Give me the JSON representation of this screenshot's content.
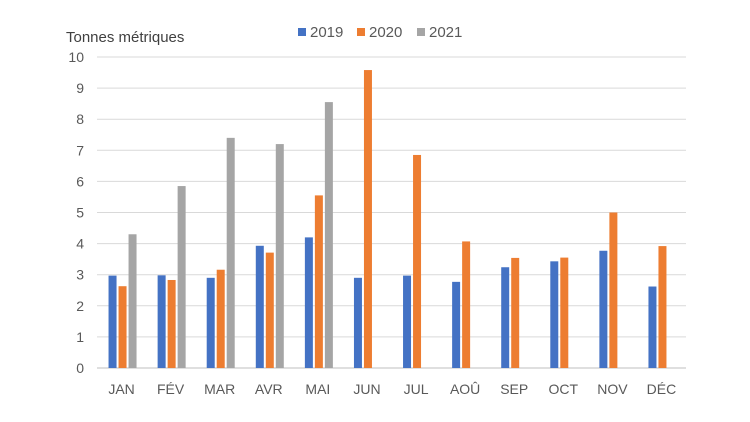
{
  "chart_data": {
    "type": "bar",
    "title": "",
    "ylabel": "Tonnes métriques",
    "xlabel": "",
    "ylim": [
      0,
      10
    ],
    "yticks": [
      0,
      1,
      2,
      3,
      4,
      5,
      6,
      7,
      8,
      9,
      10
    ],
    "grid": true,
    "legend_position": "top",
    "categories": [
      "JAN",
      "FÉV",
      "MAR",
      "AVR",
      "MAI",
      "JUN",
      "JUL",
      "AOÛ",
      "SEP",
      "OCT",
      "NOV",
      "DÉC"
    ],
    "series": [
      {
        "name": "2019",
        "color": "#4472c4",
        "values": [
          2.97,
          2.98,
          2.9,
          3.93,
          4.2,
          2.9,
          2.97,
          2.77,
          3.24,
          3.43,
          3.77,
          2.62
        ]
      },
      {
        "name": "2020",
        "color": "#ed7d31",
        "values": [
          2.63,
          2.83,
          3.16,
          3.71,
          5.55,
          9.58,
          6.85,
          4.07,
          3.54,
          3.55,
          5.0,
          3.92
        ]
      },
      {
        "name": "2021",
        "color": "#a5a5a5",
        "values": [
          4.3,
          5.85,
          7.4,
          7.2,
          8.55,
          null,
          null,
          null,
          null,
          null,
          null,
          null
        ]
      }
    ]
  }
}
